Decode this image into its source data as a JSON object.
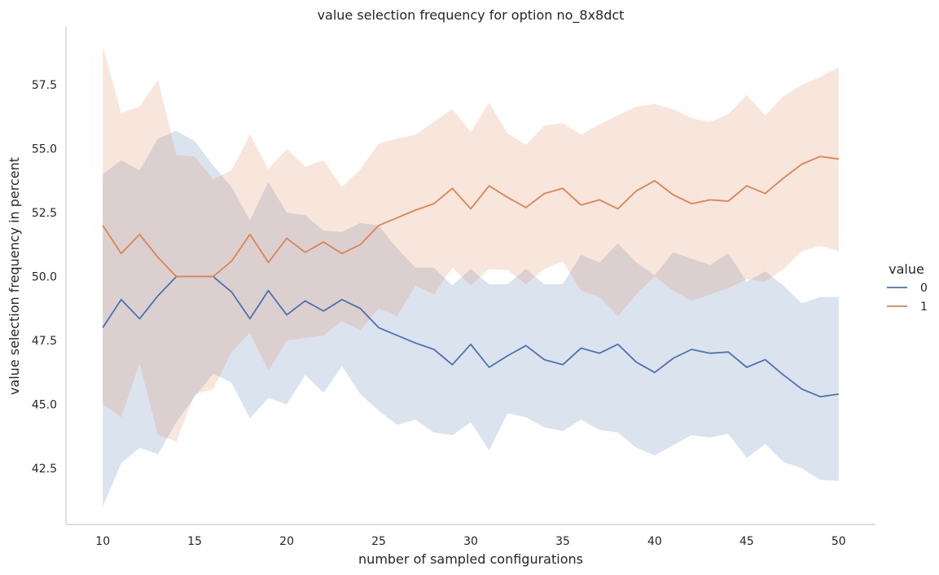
{
  "chart_data": {
    "type": "line",
    "title": "value selection frequency for option no_8x8dct",
    "xlabel": "number of sampled configurations",
    "ylabel": "value selection frequency in percent",
    "xlim": [
      8,
      52
    ],
    "ylim": [
      40.3,
      59.8
    ],
    "xticks": [
      10,
      15,
      20,
      25,
      30,
      35,
      40,
      45,
      50
    ],
    "yticks": [
      42.5,
      45.0,
      47.5,
      50.0,
      52.5,
      55.0,
      57.5
    ],
    "legend_title": "value",
    "legend_position": "right",
    "grid": false,
    "x": [
      10,
      11,
      12,
      13,
      14,
      15,
      16,
      17,
      18,
      19,
      20,
      21,
      22,
      23,
      24,
      25,
      26,
      27,
      28,
      29,
      30,
      31,
      32,
      33,
      34,
      35,
      36,
      37,
      38,
      39,
      40,
      41,
      42,
      43,
      44,
      45,
      46,
      47,
      48,
      49,
      50
    ],
    "series": [
      {
        "name": "0",
        "color": "#4c72b0",
        "values": [
          48.0,
          49.1,
          48.35,
          49.25,
          50.0,
          50.0,
          50.0,
          49.4,
          48.35,
          49.45,
          48.5,
          49.05,
          48.65,
          49.1,
          48.75,
          48.0,
          47.7,
          47.4,
          47.15,
          46.55,
          47.35,
          46.45,
          46.9,
          47.3,
          46.75,
          46.55,
          47.2,
          47.0,
          47.35,
          46.65,
          46.25,
          46.8,
          47.15,
          47.0,
          47.05,
          46.45,
          46.75,
          46.15,
          45.6,
          45.3,
          45.4
        ],
        "lower": [
          41.0,
          42.7,
          43.3,
          43.05,
          44.3,
          45.3,
          46.2,
          45.85,
          44.45,
          45.25,
          45.0,
          46.15,
          45.45,
          46.5,
          45.4,
          44.75,
          44.2,
          44.4,
          43.9,
          43.8,
          44.3,
          43.2,
          44.65,
          44.5,
          44.1,
          43.95,
          44.4,
          44.0,
          43.9,
          43.3,
          43.0,
          43.4,
          43.8,
          43.7,
          43.85,
          42.9,
          43.45,
          42.75,
          42.5,
          42.05,
          42.0
        ],
        "upper": [
          54.0,
          54.55,
          54.15,
          55.4,
          55.7,
          55.3,
          54.35,
          53.5,
          52.2,
          53.7,
          52.5,
          52.4,
          51.8,
          51.75,
          52.1,
          52.0,
          51.1,
          50.35,
          50.35,
          49.65,
          50.3,
          49.7,
          49.7,
          50.3,
          49.7,
          49.7,
          50.85,
          50.55,
          51.3,
          50.55,
          50.05,
          50.95,
          50.7,
          50.45,
          50.9,
          49.8,
          50.2,
          49.65,
          48.95,
          49.2,
          49.2
        ]
      },
      {
        "name": "1",
        "color": "#dd8452",
        "values": [
          52.0,
          50.9,
          51.65,
          50.75,
          50.0,
          50.0,
          50.0,
          50.6,
          51.65,
          50.55,
          51.5,
          50.95,
          51.35,
          50.9,
          51.25,
          52.0,
          52.3,
          52.6,
          52.85,
          53.45,
          52.65,
          53.55,
          53.1,
          52.7,
          53.25,
          53.45,
          52.8,
          53.0,
          52.65,
          53.35,
          53.75,
          53.2,
          52.85,
          53.0,
          52.95,
          53.55,
          53.25,
          53.85,
          54.4,
          54.7,
          54.6
        ],
        "lower": [
          45.0,
          44.5,
          46.6,
          43.8,
          43.55,
          45.4,
          45.6,
          47.05,
          47.8,
          46.3,
          47.5,
          47.6,
          47.7,
          48.25,
          47.9,
          48.75,
          48.45,
          49.65,
          49.3,
          50.35,
          49.65,
          50.3,
          50.25,
          49.7,
          50.3,
          50.6,
          49.45,
          49.2,
          48.45,
          49.3,
          50.0,
          49.45,
          49.05,
          49.3,
          49.55,
          49.9,
          49.8,
          50.3,
          51.0,
          51.2,
          51.0
        ],
        "upper": [
          59.0,
          56.4,
          56.65,
          57.7,
          54.75,
          54.7,
          53.8,
          54.15,
          55.55,
          54.2,
          55.0,
          54.3,
          54.55,
          53.5,
          54.2,
          55.2,
          55.4,
          55.55,
          56.05,
          56.55,
          55.65,
          56.8,
          55.6,
          55.15,
          55.9,
          56.0,
          55.55,
          55.95,
          56.3,
          56.65,
          56.75,
          56.55,
          56.2,
          56.05,
          56.35,
          57.1,
          56.3,
          57.05,
          57.5,
          57.8,
          58.2
        ]
      }
    ]
  }
}
